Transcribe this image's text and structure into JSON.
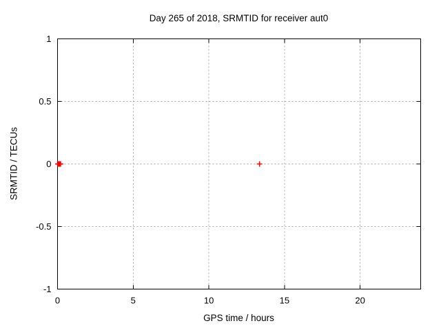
{
  "chart_data": {
    "type": "scatter",
    "title": "Day 265 of 2018, SRMTID for receiver aut0",
    "xlabel": "GPS time / hours",
    "ylabel": "SRMTID / TECUs",
    "xlim": [
      0,
      24
    ],
    "ylim": [
      -1,
      1
    ],
    "xticks": [
      0,
      5,
      10,
      15,
      20
    ],
    "yticks": [
      1,
      0.5,
      0,
      -0.5,
      -1
    ],
    "grid": true,
    "legend_position": "none",
    "marker": "plus",
    "series": [
      {
        "name": "SRMTID",
        "color": "#ff0000",
        "points": [
          [
            0.02,
            0.0
          ],
          [
            0.05,
            0.0
          ],
          [
            0.08,
            0.0
          ],
          [
            0.11,
            0.0
          ],
          [
            0.14,
            0.0
          ],
          [
            0.17,
            0.0
          ],
          [
            0.2,
            0.0
          ],
          [
            13.35,
            0.0
          ]
        ]
      }
    ],
    "colors": {
      "background": "#ffffff",
      "axis": "#000000",
      "grid": "#a8a8a8",
      "marker": "#ff0000"
    }
  }
}
